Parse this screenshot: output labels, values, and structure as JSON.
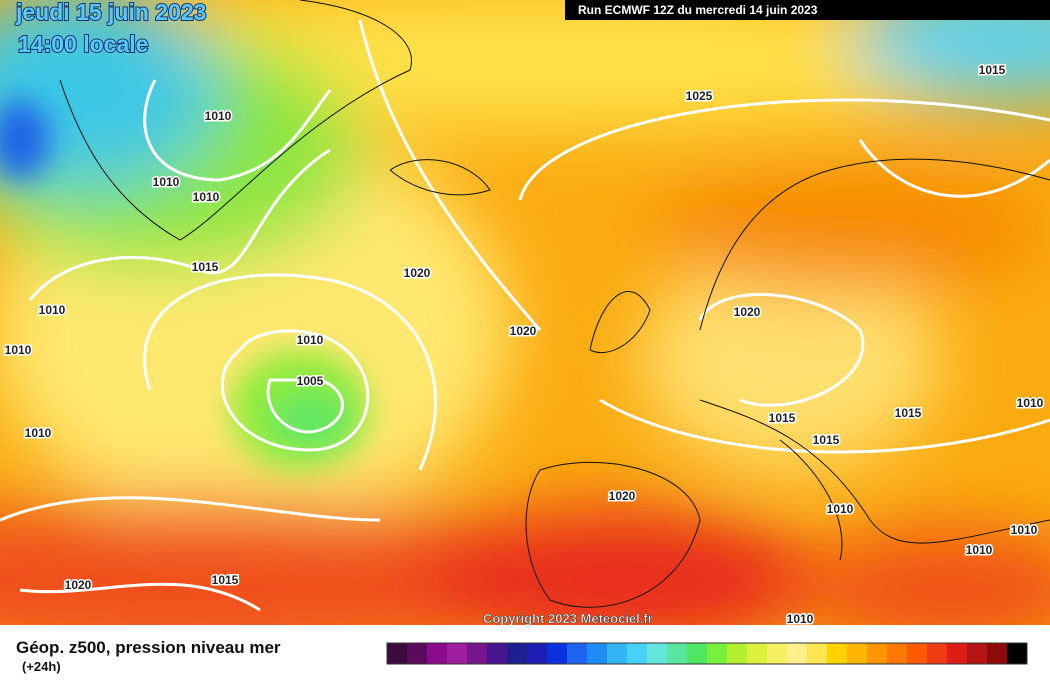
{
  "header": {
    "date": "jeudi 15 juin 2023",
    "time": "14:00 locale",
    "run": "Run ECMWF 12Z du mercredi 14 juin 2023"
  },
  "isobar_labels": [
    "1010",
    "1010",
    "1010",
    "1015",
    "1020",
    "1010",
    "1010",
    "1010",
    "1005",
    "1010",
    "1020",
    "1020",
    "1025",
    "1015",
    "1015",
    "1015",
    "1015",
    "1010",
    "1020",
    "1010",
    "1010",
    "1010",
    "1020",
    "1015",
    "1010"
  ],
  "copyright": "Copyright 2023 Meteociel.fr",
  "caption": {
    "title": "Géop. z500, pression niveau mer",
    "subtitle": "(+24h)"
  },
  "legend": {
    "colors": [
      "#3c0a3c",
      "#5a0a5a",
      "#8c0a8c",
      "#a01ea0",
      "#78148c",
      "#46148c",
      "#1e1e8c",
      "#1e1eb4",
      "#0a32dc",
      "#1e64f0",
      "#1e8cf5",
      "#32b4f5",
      "#46d2f5",
      "#64e6dc",
      "#5ae6a0",
      "#50e664",
      "#78f03c",
      "#b4f032",
      "#dcf03c",
      "#f5f064",
      "#fff08c",
      "#ffe650",
      "#ffd200",
      "#ffb400",
      "#ff9600",
      "#ff7800",
      "#ff5a00",
      "#f03c14",
      "#dc1e14",
      "#b41414",
      "#8c0a0a",
      "#000000"
    ]
  }
}
